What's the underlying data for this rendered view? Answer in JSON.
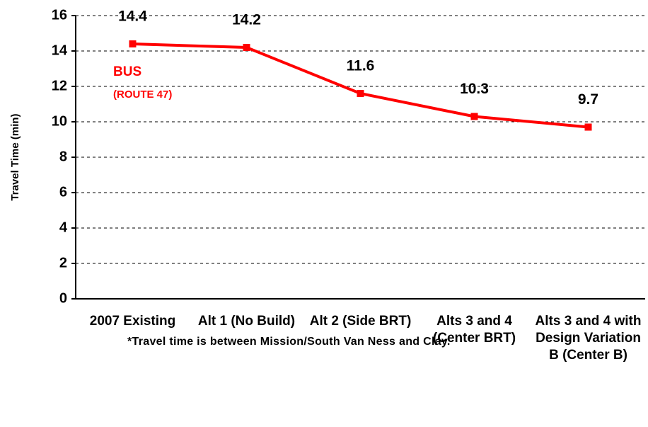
{
  "chart_data": {
    "type": "line",
    "y_label": "Travel Time (min)",
    "categories": [
      "2007 Existing",
      "Alt 1 (No Build)",
      "Alt 2 (Side BRT)",
      "Alts 3 and 4 (Center BRT)",
      "Alts 3 and 4 with Design Variation B (Center B)"
    ],
    "series": [
      {
        "name": "BUS",
        "color": "#ff0000",
        "values": [
          14.4,
          14.2,
          11.6,
          10.3,
          9.7
        ]
      }
    ],
    "annotations": [
      "BUS",
      "(ROUTE 47)"
    ],
    "footnote": "*Travel time is between Mission/South Van Ness and Clay.",
    "ylim": [
      0,
      16
    ],
    "yticks": [
      0,
      2,
      4,
      6,
      8,
      10,
      12,
      14,
      16
    ],
    "grid": true
  }
}
